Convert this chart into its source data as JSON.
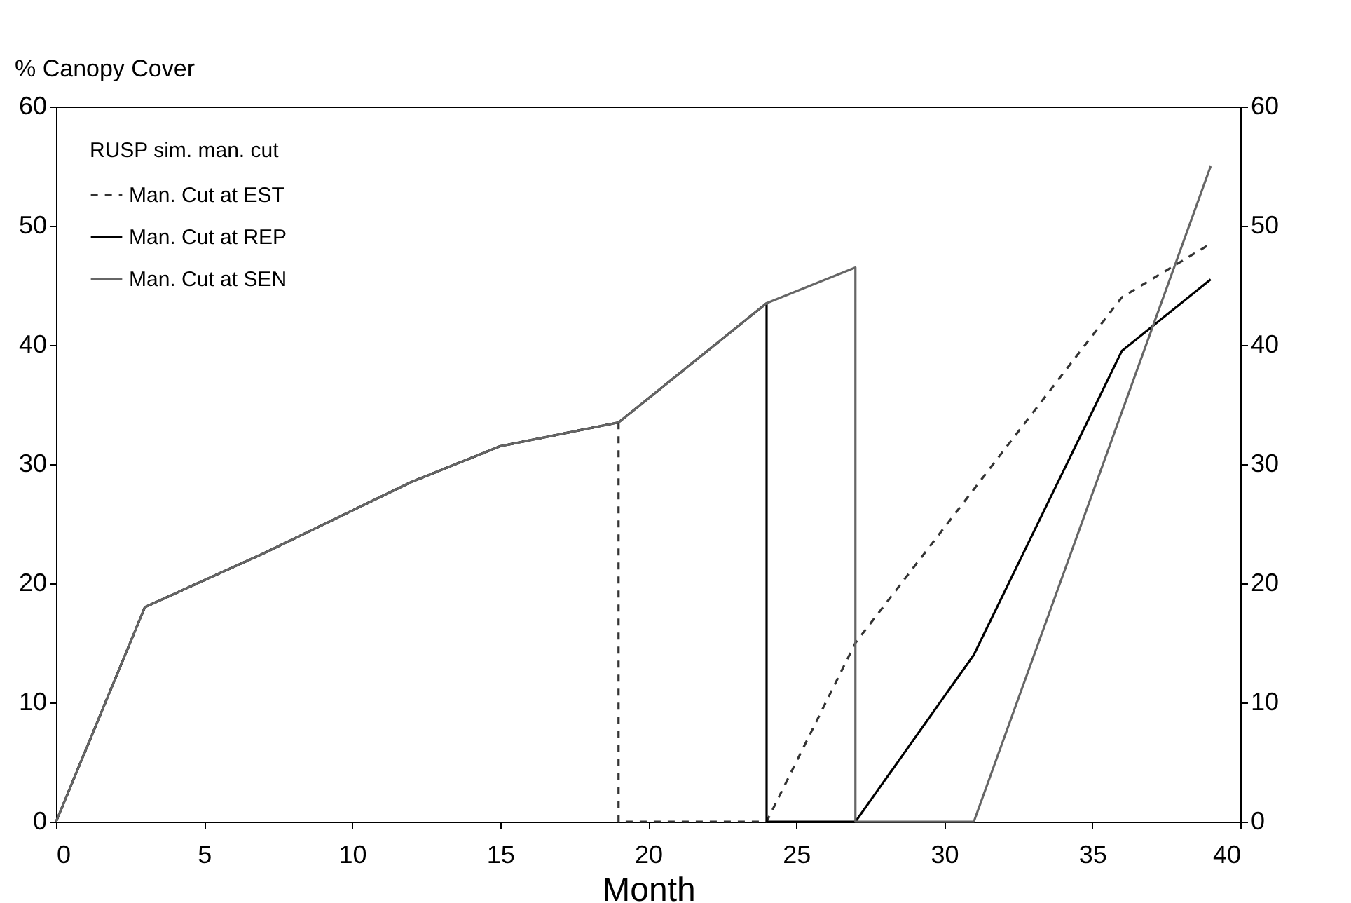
{
  "chart_data": {
    "type": "line",
    "ylabel": "% Canopy Cover",
    "xlabel": "Month",
    "legend_title": "RUSP sim. man. cut",
    "legend": "top left",
    "grid": false,
    "xlim": [
      0,
      40
    ],
    "xticks": [
      0,
      5,
      10,
      15,
      20,
      25,
      30,
      35,
      40
    ],
    "ylim": [
      0,
      60
    ],
    "yticks": [
      0,
      10,
      20,
      30,
      40,
      50,
      60
    ],
    "y2lim": [
      0,
      60
    ],
    "y2ticks": [
      0,
      10,
      20,
      30,
      40,
      50,
      60
    ],
    "series": [
      {
        "name": "Man. Cut at EST",
        "color": "#333333",
        "line_style": "dashed",
        "x": [
          0,
          3,
          7,
          12,
          15,
          19,
          19,
          24,
          27,
          36,
          39
        ],
        "values": [
          0,
          18,
          22.5,
          28.5,
          31.5,
          33.5,
          0,
          0,
          15,
          44,
          48.5
        ]
      },
      {
        "name": "Man. Cut at REP",
        "color": "#000000",
        "line_style": "solid",
        "x": [
          0,
          3,
          7,
          12,
          15,
          19,
          24,
          24,
          27,
          31,
          36,
          39
        ],
        "values": [
          0,
          18,
          22.5,
          28.5,
          31.5,
          33.5,
          43.5,
          0,
          0,
          14,
          39.5,
          45.5
        ]
      },
      {
        "name": "Man. Cut at SEN",
        "color": "#666666",
        "line_style": "solid",
        "x": [
          0,
          3,
          7,
          12,
          15,
          19,
          24,
          27,
          27,
          31,
          39
        ],
        "values": [
          0,
          18,
          22.5,
          28.5,
          31.5,
          33.5,
          43.5,
          46.5,
          0,
          0,
          55
        ]
      }
    ]
  }
}
